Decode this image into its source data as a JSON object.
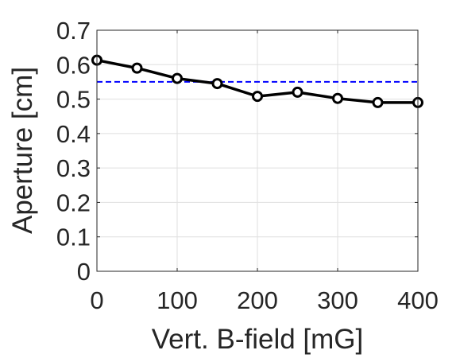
{
  "chart_data": {
    "type": "line",
    "xlabel": "Vert. B-field [mG]",
    "ylabel": "Aperture [cm]",
    "xlim": [
      0,
      400
    ],
    "ylim": [
      0,
      0.7
    ],
    "xticks": [
      "0",
      "100",
      "200",
      "300",
      "400"
    ],
    "yticks": [
      "0",
      "0.1",
      "0.2",
      "0.3",
      "0.4",
      "0.5",
      "0.6",
      "0.7"
    ],
    "grid": true,
    "series": [
      {
        "x": [
          0,
          50,
          100,
          150,
          200,
          250,
          300,
          350,
          400
        ],
        "y": [
          0.613,
          0.59,
          0.56,
          0.545,
          0.508,
          0.52,
          0.502,
          0.49,
          0.49
        ],
        "color": "#000000",
        "marker": "circle"
      }
    ],
    "reference_line": {
      "y": 0.55,
      "color": "#0000ff",
      "style": "dashed"
    }
  }
}
